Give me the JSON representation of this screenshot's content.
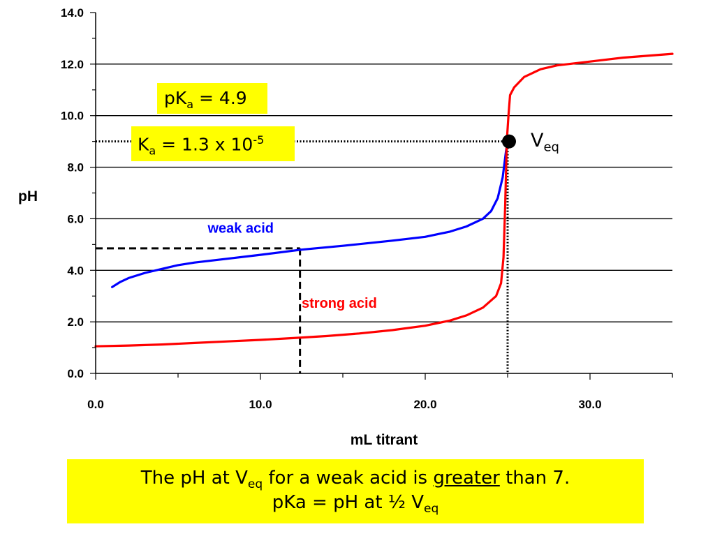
{
  "chart_data": {
    "type": "line",
    "xlabel": "mL titrant",
    "ylabel": "pH",
    "xlim": [
      0,
      35
    ],
    "ylim": [
      0,
      14
    ],
    "x_ticks": [
      0,
      10,
      20,
      30
    ],
    "x_tick_labels": [
      "0.0",
      "10.0",
      "20.0",
      "30.0"
    ],
    "y_ticks": [
      0,
      2,
      4,
      6,
      8,
      10,
      12,
      14
    ],
    "y_tick_labels": [
      "0.0",
      "2.0",
      "4.0",
      "6.0",
      "8.0",
      "10.0",
      "12.0",
      "14.0"
    ],
    "grid": "horizontal",
    "series": [
      {
        "name": "weak acid",
        "color": "#0000ff",
        "points": [
          [
            1.0,
            3.35
          ],
          [
            1.5,
            3.55
          ],
          [
            2.0,
            3.7
          ],
          [
            3.0,
            3.9
          ],
          [
            4.0,
            4.05
          ],
          [
            5.0,
            4.2
          ],
          [
            6.0,
            4.3
          ],
          [
            8.0,
            4.45
          ],
          [
            10.0,
            4.6
          ],
          [
            12.5,
            4.8
          ],
          [
            15.0,
            4.95
          ],
          [
            18.0,
            5.15
          ],
          [
            20.0,
            5.3
          ],
          [
            21.5,
            5.5
          ],
          [
            22.5,
            5.7
          ],
          [
            23.5,
            6.0
          ],
          [
            24.0,
            6.3
          ],
          [
            24.4,
            6.8
          ],
          [
            24.7,
            7.6
          ],
          [
            24.9,
            8.6
          ],
          [
            25.0,
            9.0
          ]
        ]
      },
      {
        "name": "strong acid",
        "color": "#ff0000",
        "points": [
          [
            0.0,
            1.05
          ],
          [
            2.0,
            1.08
          ],
          [
            4.0,
            1.12
          ],
          [
            6.0,
            1.18
          ],
          [
            8.0,
            1.24
          ],
          [
            10.0,
            1.3
          ],
          [
            12.0,
            1.37
          ],
          [
            14.0,
            1.45
          ],
          [
            16.0,
            1.55
          ],
          [
            18.0,
            1.68
          ],
          [
            20.0,
            1.85
          ],
          [
            21.5,
            2.05
          ],
          [
            22.5,
            2.25
          ],
          [
            23.5,
            2.55
          ],
          [
            24.3,
            3.0
          ],
          [
            24.6,
            3.5
          ],
          [
            24.75,
            4.5
          ],
          [
            24.85,
            6.5
          ],
          [
            24.95,
            9.0
          ],
          [
            25.05,
            10.0
          ],
          [
            25.15,
            10.8
          ],
          [
            25.4,
            11.1
          ],
          [
            26.0,
            11.5
          ],
          [
            27.0,
            11.8
          ],
          [
            28.0,
            11.95
          ],
          [
            30.0,
            12.1
          ],
          [
            32.0,
            12.25
          ],
          [
            35.0,
            12.4
          ]
        ]
      }
    ],
    "half_equivalence": {
      "x": 12.4,
      "y": 4.85
    },
    "equivalence_point": {
      "x": 25.0,
      "y": 9.0
    },
    "annotations": {
      "weak_label": "weak acid",
      "strong_label": "strong acid",
      "pka": {
        "base": "pK",
        "sub": "a",
        "rest": " = 4.9"
      },
      "ka": {
        "base": "K",
        "sub": "a",
        "rest": " = 1.3 x 10",
        "sup": "-5"
      },
      "veq": {
        "base": "V",
        "sub": "eq"
      }
    }
  },
  "note": {
    "line1_a": "The pH at V",
    "line1_sub": "eq",
    "line1_b": " for a weak acid is ",
    "line1_emph": "greater",
    "line1_c": " than 7.",
    "line2_a": "pKa = pH at ½ V",
    "line2_sub": "eq"
  }
}
